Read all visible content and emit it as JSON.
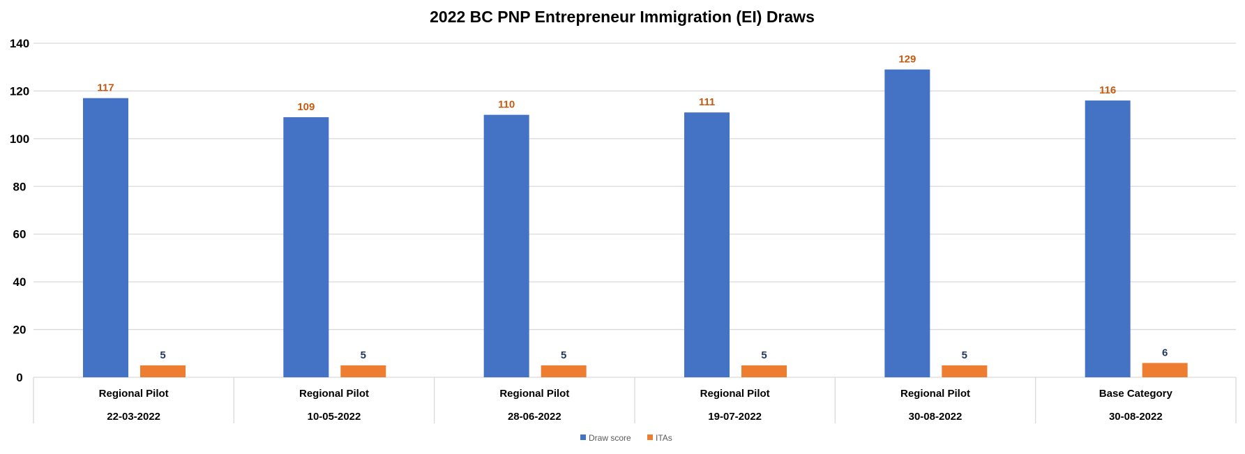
{
  "chart_data": {
    "type": "bar",
    "title": "2022 BC PNP Entrepreneur Immigration (EI) Draws",
    "categories": [
      {
        "group": "Regional Pilot",
        "date": "22-03-2022"
      },
      {
        "group": "Regional Pilot",
        "date": "10-05-2022"
      },
      {
        "group": "Regional Pilot",
        "date": "28-06-2022"
      },
      {
        "group": "Regional Pilot",
        "date": "19-07-2022"
      },
      {
        "group": "Regional Pilot",
        "date": "30-08-2022"
      },
      {
        "group": "Base Category",
        "date": "30-08-2022"
      }
    ],
    "series": [
      {
        "name": "Draw score",
        "values": [
          117,
          109,
          110,
          111,
          129,
          116
        ],
        "color": "#4472C4",
        "label_color": "#C55A11"
      },
      {
        "name": "ITAs",
        "values": [
          5,
          5,
          5,
          5,
          5,
          6
        ],
        "color": "#ED7D31",
        "label_color": "#1F3864"
      }
    ],
    "ylim": [
      0,
      140
    ],
    "yticks": [
      "0",
      "20",
      "40",
      "60",
      "80",
      "100",
      "120",
      "140"
    ],
    "grid": true,
    "legend": "bottom",
    "xlabel": "",
    "ylabel": ""
  }
}
